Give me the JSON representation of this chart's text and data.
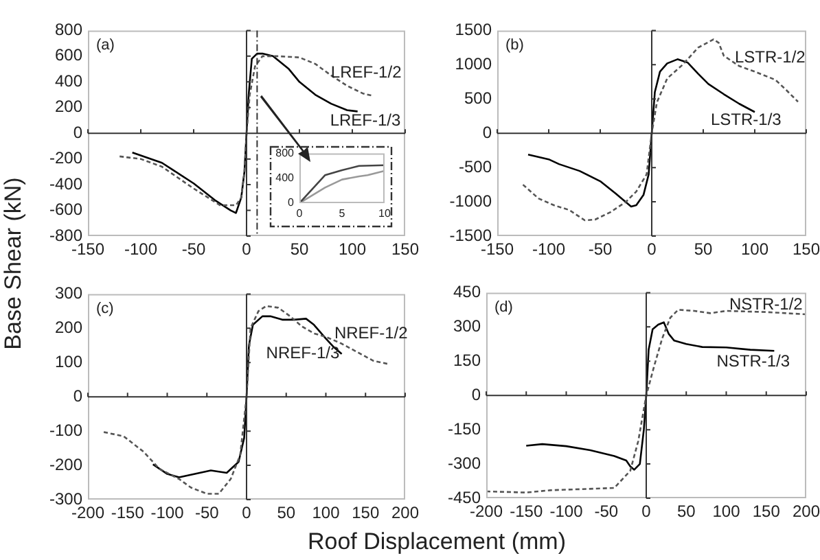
{
  "chart_data": [
    {
      "type": "line",
      "ylabel": "Base Shear (kN)",
      "xlim": [
        -150,
        150
      ],
      "xticks": [
        -150,
        -100,
        -50,
        0,
        50,
        100,
        150
      ],
      "ylim": [
        -800,
        800
      ],
      "yticks": [
        -800,
        -600,
        -400,
        -200,
        0,
        200,
        400,
        600,
        800
      ],
      "annotations": [
        "(a)"
      ],
      "ref_lines": [
        {
          "axis": "x",
          "value": 10,
          "color": "#333333",
          "line_style": "dashed"
        }
      ],
      "series": [
        {
          "name": "LREF-1/2",
          "color": "#555555",
          "line_style": "dashed",
          "x": [
            -120,
            -100,
            -80,
            -50,
            -25,
            -10,
            -5,
            -2,
            0,
            3,
            8,
            15,
            30,
            50,
            65,
            80,
            95,
            110,
            120
          ],
          "values": [
            -180,
            -200,
            -260,
            -430,
            -560,
            -560,
            -500,
            -300,
            0,
            300,
            520,
            600,
            600,
            590,
            540,
            450,
            370,
            310,
            290
          ]
        },
        {
          "name": "LREF-1/3",
          "color": "#000000",
          "line_style": "solid",
          "x": [
            -108,
            -80,
            -50,
            -30,
            -15,
            -10,
            -5,
            -2,
            0,
            2,
            5,
            10,
            15,
            25,
            40,
            50,
            65,
            80,
            95,
            105
          ],
          "values": [
            -150,
            -230,
            -390,
            -520,
            -600,
            -620,
            -500,
            -300,
            0,
            300,
            580,
            620,
            620,
            600,
            500,
            400,
            300,
            230,
            180,
            170
          ]
        }
      ]
    },
    {
      "type": "line",
      "xlim": [
        -150,
        150
      ],
      "xticks": [
        -150,
        -100,
        -50,
        0,
        50,
        100,
        150
      ],
      "ylim": [
        -1500,
        1500
      ],
      "yticks": [
        -1500,
        -1000,
        -500,
        0,
        500,
        1000,
        1500
      ],
      "annotations": [
        "(b)"
      ],
      "series": [
        {
          "name": "LSTR-1/2",
          "color": "#555555",
          "line_style": "dashed",
          "x": [
            -125,
            -110,
            -95,
            -80,
            -65,
            -55,
            -40,
            -25,
            -15,
            -5,
            0,
            5,
            15,
            30,
            45,
            60,
            65,
            70,
            85,
            100,
            120,
            130,
            142
          ],
          "values": [
            -750,
            -950,
            -1050,
            -1120,
            -1270,
            -1260,
            -1150,
            -1000,
            -850,
            -600,
            0,
            450,
            800,
            1000,
            1250,
            1370,
            1320,
            1130,
            980,
            900,
            780,
            640,
            460
          ]
        },
        {
          "name": "LSTR-1/3",
          "color": "#000000",
          "line_style": "solid",
          "x": [
            -120,
            -100,
            -90,
            -70,
            -50,
            -35,
            -20,
            -15,
            -8,
            -3,
            0,
            3,
            8,
            15,
            25,
            35,
            45,
            55,
            70,
            85,
            100
          ],
          "values": [
            -310,
            -380,
            -450,
            -550,
            -700,
            -880,
            -1070,
            -1050,
            -900,
            -600,
            0,
            600,
            900,
            1020,
            1080,
            1030,
            870,
            720,
            570,
            430,
            310
          ]
        }
      ]
    },
    {
      "type": "line",
      "xlim": [
        -200,
        200
      ],
      "xticks": [
        -200,
        -150,
        -100,
        -50,
        0,
        50,
        100,
        150,
        200
      ],
      "ylim": [
        -300,
        300
      ],
      "yticks": [
        -300,
        -200,
        -100,
        0,
        100,
        200,
        300
      ],
      "annotations": [
        "(c)"
      ],
      "series": [
        {
          "name": "NREF-1/2",
          "color": "#555555",
          "line_style": "dashed",
          "x": [
            -180,
            -155,
            -130,
            -110,
            -85,
            -70,
            -50,
            -35,
            -20,
            -8,
            0,
            5,
            15,
            25,
            40,
            55,
            70,
            85,
            100,
            120,
            140,
            160,
            180
          ],
          "values": [
            -103,
            -115,
            -160,
            -210,
            -240,
            -265,
            -283,
            -283,
            -240,
            -170,
            0,
            200,
            250,
            265,
            260,
            235,
            205,
            185,
            175,
            155,
            130,
            105,
            95
          ]
        },
        {
          "name": "NREF-1/3",
          "color": "#000000",
          "line_style": "solid",
          "x": [
            -118,
            -100,
            -85,
            -65,
            -45,
            -25,
            -10,
            -3,
            0,
            3,
            8,
            20,
            30,
            45,
            60,
            75,
            85,
            100,
            110,
            120
          ],
          "values": [
            -197,
            -225,
            -235,
            -225,
            -215,
            -222,
            -190,
            -120,
            0,
            150,
            210,
            235,
            235,
            225,
            225,
            228,
            210,
            170,
            145,
            125
          ]
        }
      ]
    },
    {
      "type": "line",
      "xlabel": "Roof Displacement (mm)",
      "xlim": [
        -200,
        200
      ],
      "xticks": [
        -200,
        -150,
        -100,
        -50,
        0,
        50,
        100,
        150,
        200
      ],
      "ylim": [
        -450,
        450
      ],
      "yticks": [
        -450,
        -300,
        -150,
        0,
        150,
        300,
        450
      ],
      "annotations": [
        "(d)"
      ],
      "series": [
        {
          "name": "NSTR-1/2",
          "color": "#555555",
          "line_style": "dashed",
          "x": [
            -200,
            -150,
            -120,
            -80,
            -40,
            -20,
            -10,
            0,
            10,
            20,
            30,
            40,
            60,
            80,
            100,
            150,
            200
          ],
          "values": [
            -420,
            -425,
            -415,
            -410,
            -405,
            -330,
            -200,
            0,
            130,
            250,
            340,
            375,
            370,
            360,
            370,
            365,
            355
          ]
        },
        {
          "name": "NSTR-1/3",
          "color": "#000000",
          "line_style": "solid",
          "x": [
            -150,
            -130,
            -100,
            -70,
            -40,
            -25,
            -20,
            -15,
            -8,
            -3,
            0,
            3,
            8,
            15,
            22,
            28,
            35,
            50,
            70,
            100,
            130,
            160
          ],
          "values": [
            -220,
            -213,
            -222,
            -240,
            -265,
            -285,
            -310,
            -325,
            -300,
            -150,
            0,
            200,
            290,
            310,
            320,
            270,
            240,
            225,
            212,
            210,
            200,
            195
          ]
        }
      ]
    },
    {
      "type": "line",
      "xlim": [
        0,
        10
      ],
      "xticks": [
        0,
        5,
        10
      ],
      "ylim": [
        0,
        800
      ],
      "yticks": [
        0,
        400,
        800
      ],
      "series": [
        {
          "color": "#444444",
          "line_style": "solid",
          "x": [
            0,
            3,
            5,
            7,
            10
          ],
          "values": [
            0,
            450,
            530,
            600,
            610
          ]
        },
        {
          "color": "#999999",
          "line_style": "solid",
          "x": [
            0,
            3,
            5,
            7,
            8,
            10
          ],
          "values": [
            0,
            250,
            380,
            430,
            450,
            520
          ]
        }
      ]
    }
  ]
}
